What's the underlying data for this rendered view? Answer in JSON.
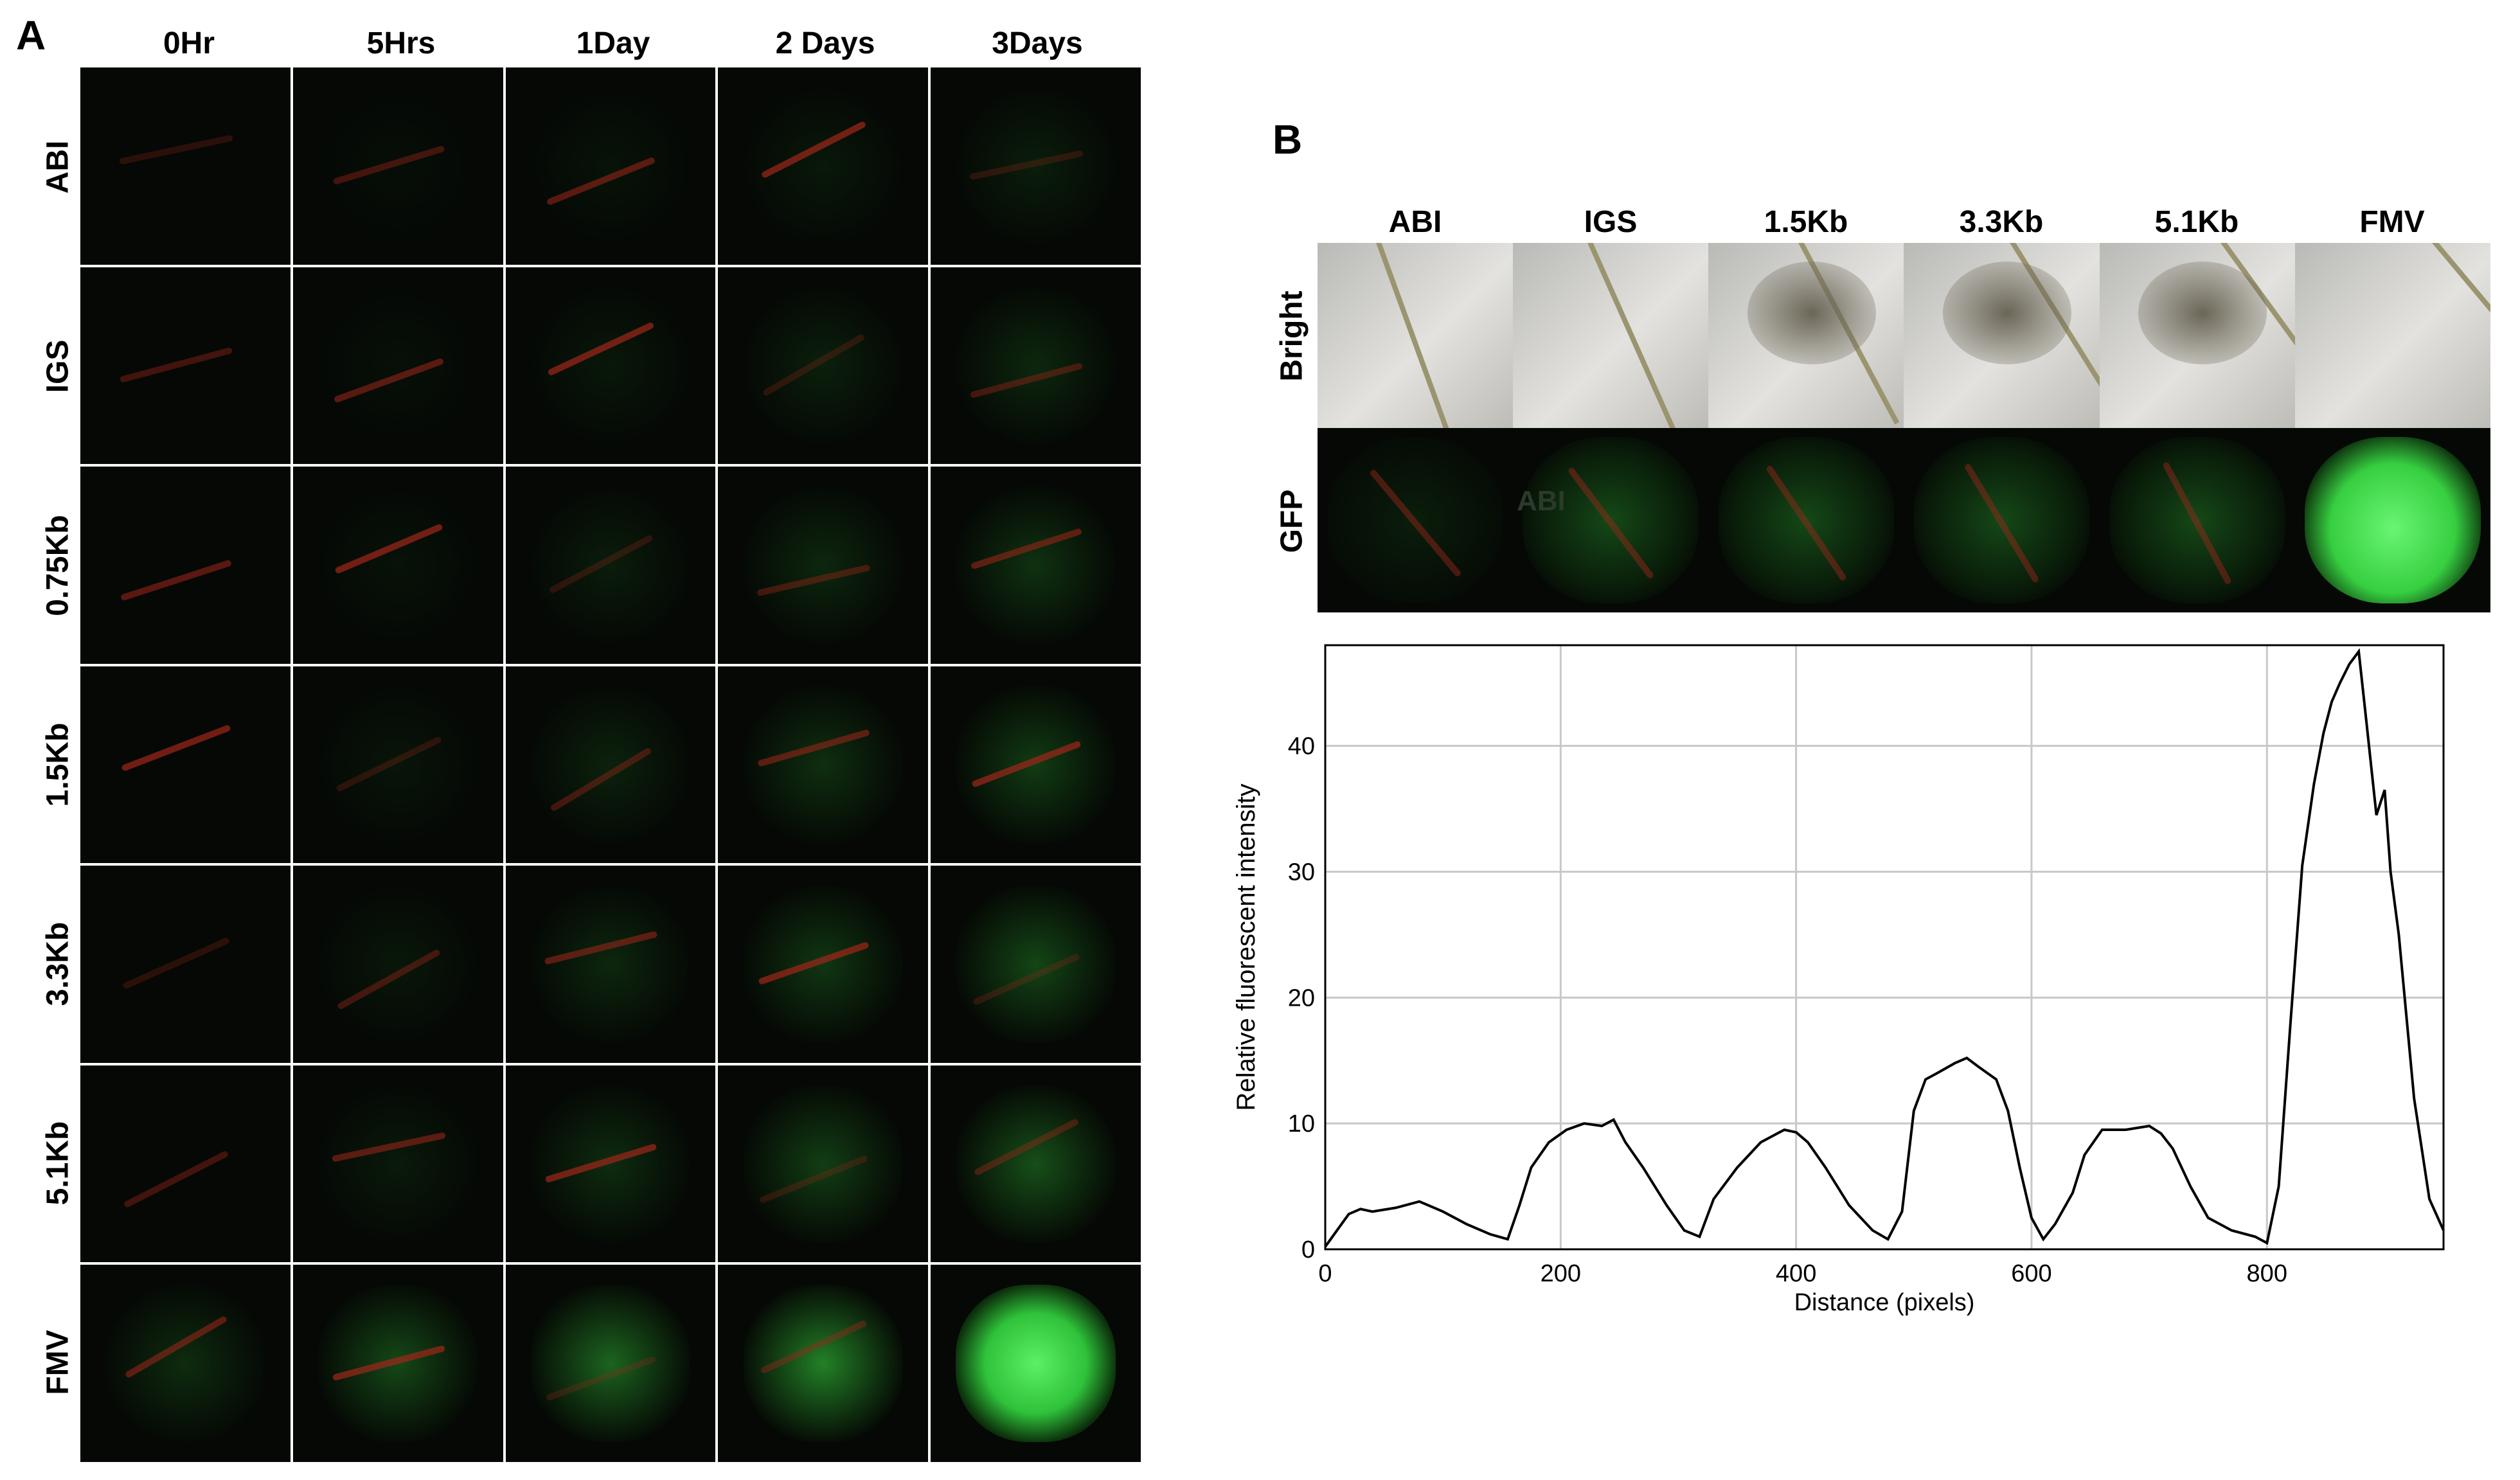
{
  "panel_a": {
    "letter": "A",
    "columns": [
      "0Hr",
      "5Hrs",
      "1Day",
      "2 Days",
      "3Days"
    ],
    "rows": [
      "ABI",
      "IGS",
      "0.75Kb",
      "1.5Kb",
      "3.3Kb",
      "5.1Kb",
      "FMV"
    ]
  },
  "panel_b": {
    "letter": "B",
    "columns": [
      "ABI",
      "IGS",
      "1.5Kb",
      "3.3Kb",
      "5.1Kb",
      "FMV"
    ],
    "rows": [
      "Bright",
      "GFP"
    ],
    "overlay_text": "ABI"
  },
  "colors": {
    "gfp_green": "#3fd24a",
    "red_vein": "#a0261a",
    "line": "#000000",
    "grid": "#c8c8c8"
  },
  "chart_data": {
    "type": "line",
    "title": "",
    "xlabel": "Distance (pixels)",
    "ylabel": "Relative fluorescent intensity",
    "xlim": [
      0,
      950
    ],
    "ylim": [
      0,
      48
    ],
    "xticks": [
      0,
      200,
      400,
      600,
      800
    ],
    "yticks": [
      0,
      10,
      20,
      30,
      40
    ],
    "grid": true,
    "legend": "none",
    "x": [
      0,
      10,
      20,
      30,
      40,
      60,
      80,
      100,
      120,
      140,
      155,
      165,
      175,
      190,
      205,
      220,
      235,
      245,
      255,
      270,
      290,
      305,
      318,
      330,
      350,
      370,
      390,
      400,
      410,
      425,
      445,
      465,
      478,
      490,
      500,
      510,
      520,
      535,
      545,
      555,
      570,
      580,
      590,
      600,
      610,
      620,
      635,
      645,
      660,
      680,
      700,
      710,
      720,
      735,
      750,
      770,
      790,
      800,
      810,
      820,
      830,
      840,
      848,
      855,
      862,
      870,
      878,
      885,
      893,
      900,
      905,
      912,
      925,
      938,
      950
    ],
    "y": [
      0.2,
      1.5,
      2.8,
      3.2,
      3.0,
      3.3,
      3.8,
      3.0,
      2.0,
      1.2,
      0.8,
      3.5,
      6.5,
      8.5,
      9.5,
      10.0,
      9.8,
      10.3,
      8.5,
      6.5,
      3.5,
      1.5,
      1.0,
      4.0,
      6.5,
      8.5,
      9.5,
      9.3,
      8.5,
      6.5,
      3.5,
      1.5,
      0.8,
      3.0,
      11.0,
      13.5,
      14.0,
      14.8,
      15.2,
      14.5,
      13.5,
      11.0,
      6.5,
      2.5,
      0.8,
      2.0,
      4.5,
      7.5,
      9.5,
      9.5,
      9.8,
      9.2,
      8.0,
      5.0,
      2.5,
      1.5,
      1.0,
      0.5,
      5.0,
      18.0,
      30.5,
      37.0,
      41.0,
      43.5,
      45.0,
      46.5,
      47.5,
      41.5,
      34.5,
      36.5,
      30.0,
      25.0,
      12.0,
      4.0,
      1.5
    ]
  }
}
